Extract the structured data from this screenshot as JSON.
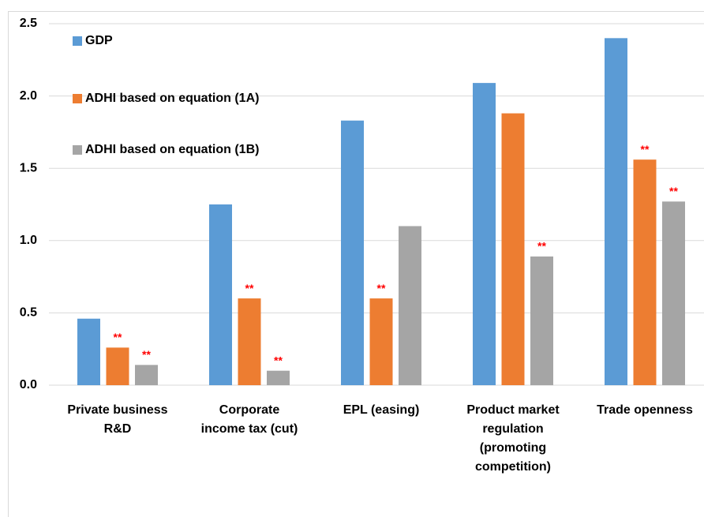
{
  "chart_data": {
    "type": "bar",
    "categories": [
      [
        "Private business",
        "R&D"
      ],
      [
        "Corporate",
        "income tax (cut)"
      ],
      [
        "EPL (easing)"
      ],
      [
        "Product market",
        "regulation",
        "(promoting",
        "competition)"
      ],
      [
        "Trade openness"
      ]
    ],
    "series": [
      {
        "name": "GDP",
        "color": "#5b9bd5",
        "values": [
          0.46,
          1.25,
          1.83,
          2.09,
          2.4
        ]
      },
      {
        "name": "ADHI based on equation (1A)",
        "color": "#ed7d31",
        "values": [
          0.26,
          0.6,
          0.6,
          1.88,
          1.56
        ],
        "significance": [
          "**",
          "**",
          "**",
          null,
          "**"
        ]
      },
      {
        "name": "ADHI based on equation (1B)",
        "color": "#a5a5a5",
        "values": [
          0.14,
          0.1,
          1.1,
          0.89,
          1.27
        ],
        "significance": [
          "**",
          "**",
          null,
          "**",
          "**"
        ]
      }
    ],
    "ylim": [
      0,
      2.5
    ],
    "yticks": [
      {
        "value": 0,
        "label": "0.0"
      },
      0.5,
      {
        "value": 1,
        "label": "1.0"
      },
      1.5,
      {
        "value": 2,
        "label": "2.0"
      },
      2.5
    ],
    "grid": true,
    "legend": "top-left"
  }
}
